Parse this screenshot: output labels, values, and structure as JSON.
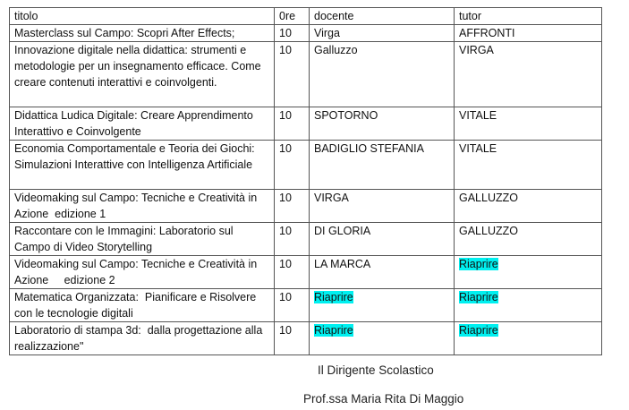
{
  "columns": [
    "titolo",
    "0re",
    "docente",
    "tutor"
  ],
  "rows": [
    {
      "titolo": "Masterclass sul Campo: Scopri After Effects;",
      "ore": "10",
      "docente": "Virga",
      "tutor": "AFFRONTI"
    },
    {
      "titolo": "Innovazione digitale nella didattica: strumenti e metodologie per un insegnamento efficace. Come creare contenuti interattivi e coinvolgenti.",
      "ore": "10",
      "docente": "Galluzzo",
      "tutor": "VIRGA"
    },
    {
      "titolo": "Didattica Ludica Digitale: Creare Apprendimento Interattivo e Coinvolgente",
      "ore": "10",
      "docente": "SPOTORNO",
      "tutor": "VITALE"
    },
    {
      "titolo": "Economia Comportamentale e Teoria dei Giochi: Simulazioni Interattive con Intelligenza Artificiale",
      "ore": "10",
      "docente": "BADIGLIO STEFANIA",
      "tutor": "VITALE"
    },
    {
      "titolo": "Videomaking sul Campo: Tecniche e Creatività in Azione  edizione 1",
      "ore": "10",
      "docente": "VIRGA",
      "tutor": "GALLUZZO"
    },
    {
      "titolo": "Raccontare con le Immagini: Laboratorio sul Campo di Video Storytelling",
      "ore": "10",
      "docente": "DI GLORIA",
      "tutor": "GALLUZZO"
    },
    {
      "titolo": "Videomaking sul Campo: Tecniche e Creatività in Azione     edizione 2",
      "ore": "10",
      "docente": "LA MARCA",
      "tutor": "Riaprire",
      "tutor_highlight": true
    },
    {
      "titolo": "Matematica Organizzata:  Pianificare e Risolvere con le tecnologie digitali",
      "ore": "10",
      "docente": "Riaprire",
      "tutor": "Riaprire",
      "docente_highlight": true,
      "tutor_highlight": true
    },
    {
      "titolo": "Laboratorio di stampa 3d:  dalla progettazione alla   realizzazione\"",
      "ore": "10",
      "docente": "Riaprire",
      "tutor": "Riaprire",
      "docente_highlight": true,
      "tutor_highlight": true
    }
  ],
  "highlight_color": "#00f0f0",
  "signature": {
    "role": "Il Dirigente Scolastico",
    "name": "Prof.ssa Maria Rita Di Maggio"
  }
}
